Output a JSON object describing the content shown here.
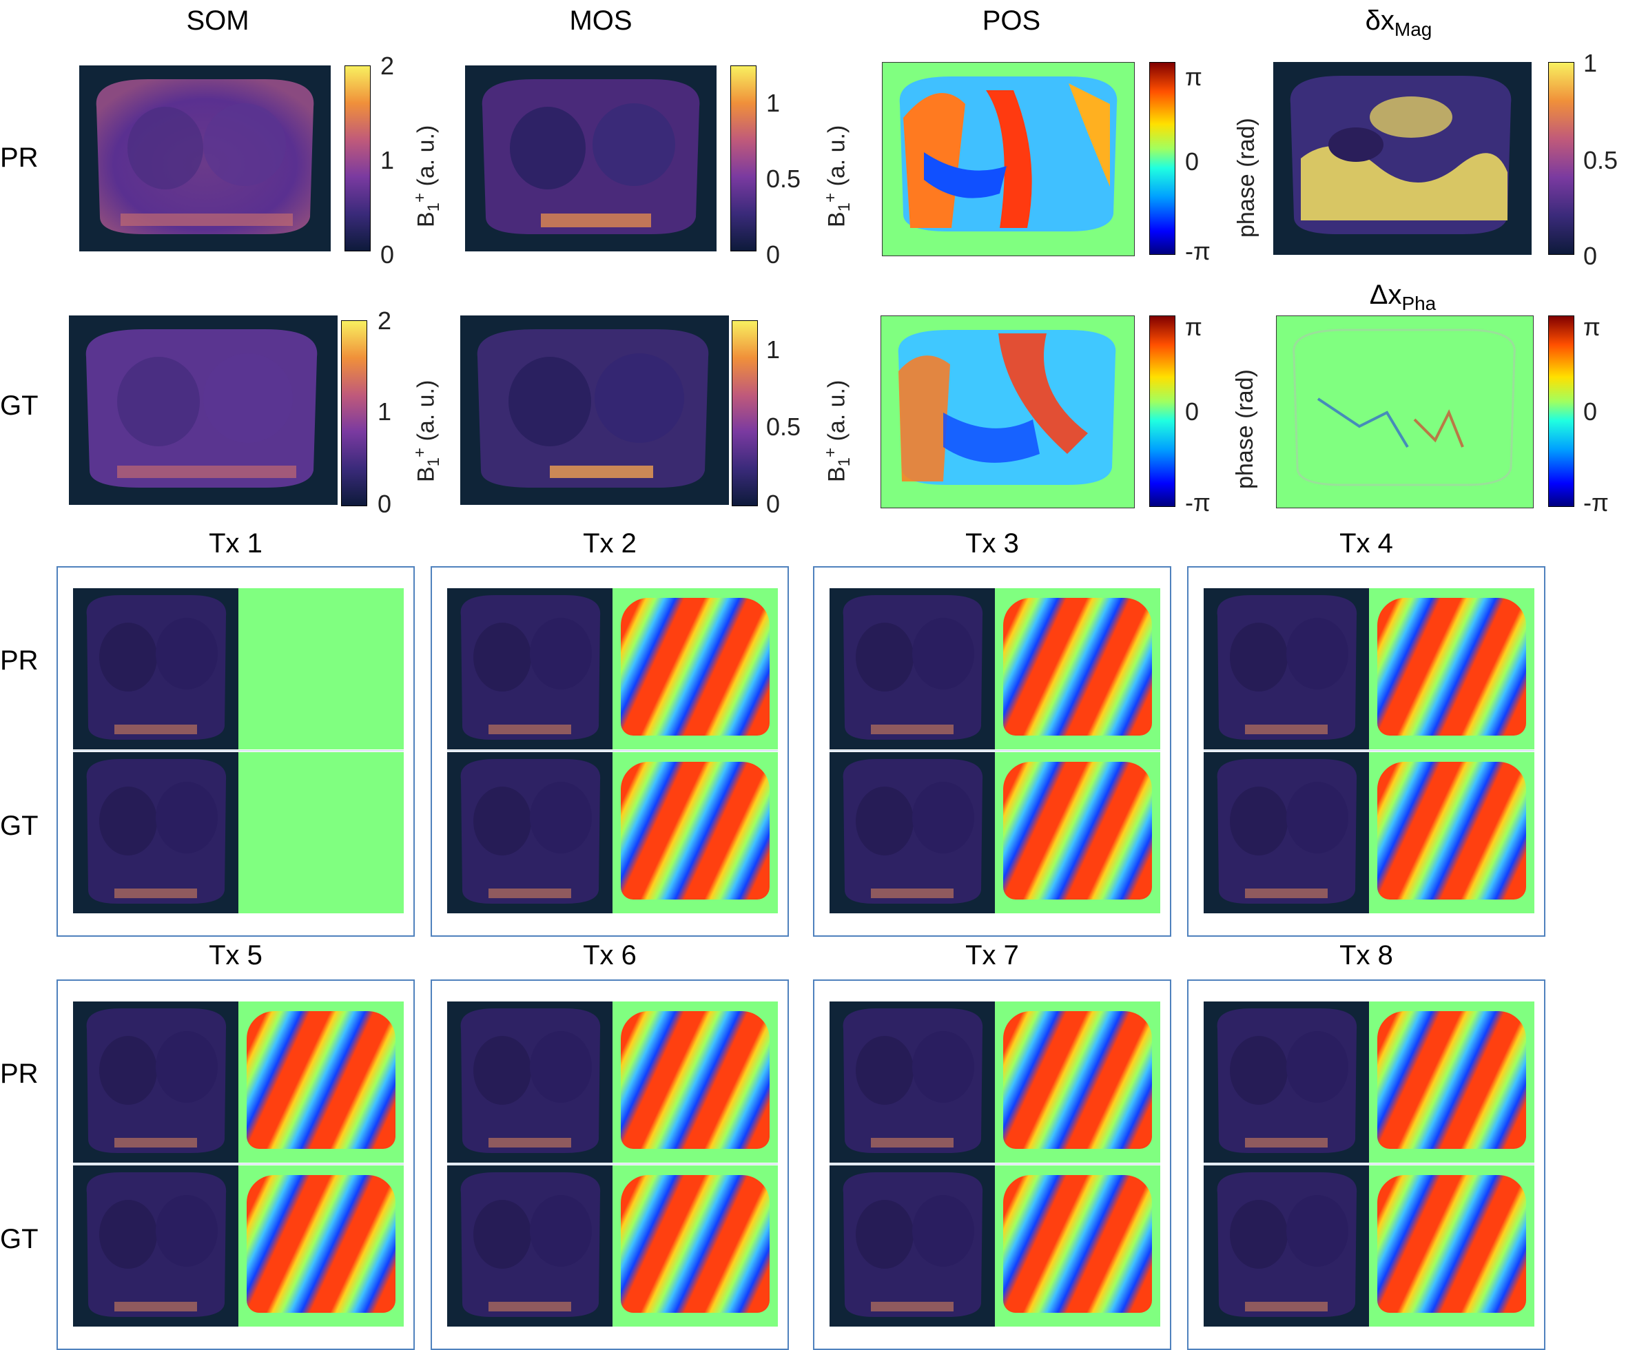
{
  "columns": {
    "som": "SOM",
    "mos": "MOS",
    "pos": "POS",
    "dx_mag_base": "δx",
    "dx_mag_sub": "Mag",
    "dx_pha_base": "Δx",
    "dx_pha_sub": "Pha"
  },
  "rows": {
    "pr": "PR",
    "gt": "GT"
  },
  "axis_labels": {
    "b1_base": "B",
    "b1_sub": "1",
    "b1_sup": "+",
    "b1_unit": " (a. u.)",
    "phase": "phase (rad)"
  },
  "colorbars": {
    "som": [
      "2",
      "1",
      "0"
    ],
    "mos": [
      "1",
      "0.5",
      "0"
    ],
    "pos": [
      "π",
      "0",
      "-π"
    ],
    "dx_mag": [
      "1",
      "0.5",
      "0"
    ],
    "dx_pha": [
      "π",
      "0",
      "-π"
    ]
  },
  "tx": [
    "Tx 1",
    "Tx 2",
    "Tx 3",
    "Tx 4",
    "Tx 5",
    "Tx 6",
    "Tx 7",
    "Tx 8"
  ],
  "colors": {
    "background_dark": "#0f2438",
    "background_green": "#80ff80",
    "box_border": "#4f81bd"
  }
}
